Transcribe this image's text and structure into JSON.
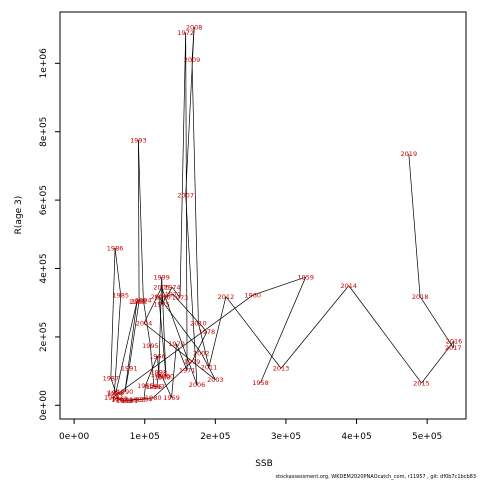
{
  "chart_data": {
    "type": "line",
    "xlabel": "SSB",
    "ylabel": "R(age 3)",
    "xlim": [
      -20000,
      555000
    ],
    "ylim": [
      -40000,
      1150000
    ],
    "xticks": [
      0,
      100000,
      200000,
      300000,
      400000,
      500000
    ],
    "xtick_labels": [
      "0e+00",
      "1e+05",
      "2e+05",
      "3e+05",
      "4e+05",
      "5e+05"
    ],
    "yticks": [
      0,
      200000,
      400000,
      600000,
      800000,
      1000000
    ],
    "ytick_labels": [
      "0e+00",
      "2e+05",
      "4e+05",
      "6e+05",
      "8e+05",
      "1e+06"
    ],
    "label_color": "#cc0000",
    "line_color": "#000000",
    "points": [
      {
        "year": "1958",
        "x": 264000,
        "y": 66000
      },
      {
        "year": "1959",
        "x": 328000,
        "y": 375000
      },
      {
        "year": "1960",
        "x": 253000,
        "y": 322000
      },
      {
        "year": "1961",
        "x": 54000,
        "y": 22000
      },
      {
        "year": "1962",
        "x": 65000,
        "y": 20000
      },
      {
        "year": "1963",
        "x": 90000,
        "y": 17000
      },
      {
        "year": "1964",
        "x": 99000,
        "y": 18000
      },
      {
        "year": "1965",
        "x": 101000,
        "y": 58000
      },
      {
        "year": "1966",
        "x": 118000,
        "y": 144000
      },
      {
        "year": "1967",
        "x": 120000,
        "y": 90000
      },
      {
        "year": "1968",
        "x": 125000,
        "y": 82000
      },
      {
        "year": "1969",
        "x": 138000,
        "y": 23000
      },
      {
        "year": "1970",
        "x": 145000,
        "y": 180000
      },
      {
        "year": "1971",
        "x": 160000,
        "y": 102000
      },
      {
        "year": "1972",
        "x": 158000,
        "y": 1090000
      },
      {
        "year": "1973",
        "x": 150000,
        "y": 315000
      },
      {
        "year": "1974",
        "x": 139000,
        "y": 345000
      },
      {
        "year": "1975",
        "x": 124000,
        "y": 295000
      },
      {
        "year": "1976",
        "x": 125000,
        "y": 316000
      },
      {
        "year": "1977",
        "x": 140000,
        "y": 325000
      },
      {
        "year": "1978",
        "x": 188000,
        "y": 215000
      },
      {
        "year": "1979",
        "x": 167000,
        "y": 128000
      },
      {
        "year": "1980",
        "x": 112000,
        "y": 22000
      },
      {
        "year": "1981",
        "x": 79000,
        "y": 14000
      },
      {
        "year": "1982",
        "x": 71000,
        "y": 14000
      },
      {
        "year": "1983",
        "x": 64000,
        "y": 17000
      },
      {
        "year": "1984",
        "x": 57000,
        "y": 34000
      },
      {
        "year": "1985",
        "x": 66000,
        "y": 322000
      },
      {
        "year": "1986",
        "x": 58000,
        "y": 460000
      },
      {
        "year": "1987",
        "x": 52000,
        "y": 80000
      },
      {
        "year": "1988",
        "x": 59000,
        "y": 37000
      },
      {
        "year": "1989",
        "x": 89000,
        "y": 303000
      },
      {
        "year": "1990",
        "x": 72000,
        "y": 40000
      },
      {
        "year": "1991",
        "x": 78000,
        "y": 108000
      },
      {
        "year": "1992",
        "x": 92000,
        "y": 305000
      },
      {
        "year": "1993",
        "x": 91000,
        "y": 775000
      },
      {
        "year": "1994",
        "x": 98000,
        "y": 308000
      },
      {
        "year": "1995",
        "x": 108000,
        "y": 175000
      },
      {
        "year": "1996",
        "x": 113000,
        "y": 55000
      },
      {
        "year": "1997",
        "x": 117000,
        "y": 54000
      },
      {
        "year": "1998",
        "x": 120000,
        "y": 97000
      },
      {
        "year": "1999",
        "x": 124000,
        "y": 375000
      },
      {
        "year": "2000",
        "x": 130000,
        "y": 85000
      },
      {
        "year": "2001",
        "x": 120000,
        "y": 317000
      },
      {
        "year": "2002",
        "x": 180000,
        "y": 153000
      },
      {
        "year": "2003",
        "x": 200000,
        "y": 75000
      },
      {
        "year": "2004",
        "x": 99000,
        "y": 240000
      },
      {
        "year": "2005",
        "x": 124000,
        "y": 345000
      },
      {
        "year": "2006",
        "x": 174000,
        "y": 60000
      },
      {
        "year": "2007",
        "x": 158000,
        "y": 615000
      },
      {
        "year": "2008",
        "x": 170000,
        "y": 1105000
      },
      {
        "year": "2009",
        "x": 167000,
        "y": 1010000
      },
      {
        "year": "2010",
        "x": 176000,
        "y": 240000
      },
      {
        "year": "2011",
        "x": 191000,
        "y": 112000
      },
      {
        "year": "2012",
        "x": 215000,
        "y": 318000
      },
      {
        "year": "2013",
        "x": 293000,
        "y": 108000
      },
      {
        "year": "2014",
        "x": 389000,
        "y": 350000
      },
      {
        "year": "2015",
        "x": 492000,
        "y": 65000
      },
      {
        "year": "2016",
        "x": 538000,
        "y": 188000
      },
      {
        "year": "2017",
        "x": 537000,
        "y": 168000
      },
      {
        "year": "2018",
        "x": 490000,
        "y": 318000
      },
      {
        "year": "2019",
        "x": 474000,
        "y": 735000
      }
    ]
  },
  "footer": "stockassessment.org, WKDEM2020PNAOcatch_com, r11957 , git: df0b7c1bcb83"
}
